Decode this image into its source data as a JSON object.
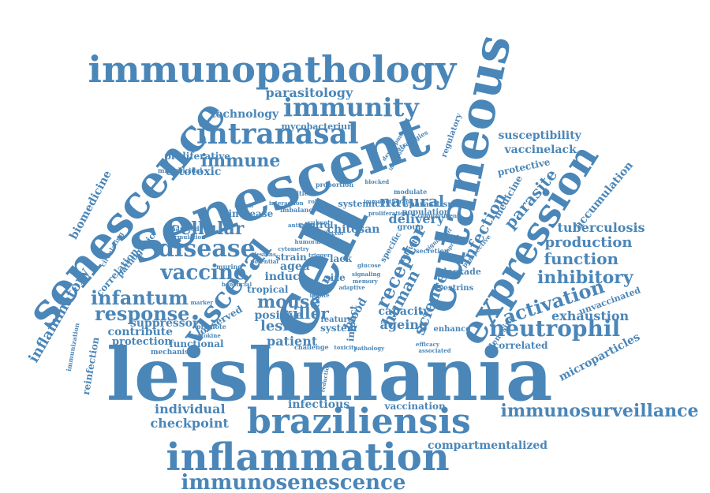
{
  "color": "#4a86b8",
  "words": [
    "leishmania",
    "cell",
    "senescent",
    "cutaneous",
    "expression",
    "senescence",
    "immunopathology",
    "inflammation",
    "braziliensis",
    "visceral",
    "intranasal",
    "immunity",
    "immunosenescence",
    "immunosurveillance",
    "neutrophil",
    "disease",
    "vaccine",
    "infantum",
    "response",
    "mouse",
    "cellular",
    "activation",
    "inhibitory",
    "function",
    "production",
    "tuberculosis",
    "parasite",
    "infection",
    "receptor",
    "human",
    "science",
    "inflammatory",
    "natural",
    "delivery",
    "killer",
    "lesion",
    "immune",
    "technology",
    "parasitology",
    "cytotoxic",
    "proliferative",
    "biomedicine",
    "mycobacterium",
    "chitosan",
    "infectious",
    "vaccination",
    "individual",
    "checkpoint",
    "compartmentalized",
    "microparticles",
    "exhaustion",
    "unvaccinated",
    "accumulation",
    "susceptibility",
    "vaccinelack",
    "protective",
    "medicine",
    "correlated",
    "adenosine",
    "patient",
    "ageing",
    "capacity",
    "positive",
    "aged",
    "induce",
    "tropical",
    "skin",
    "suppressor",
    "observed",
    "contribute",
    "protection",
    "mechanism",
    "functional",
    "reinfection",
    "immunization",
    "correlation",
    "pathogenic",
    "microbicidal",
    "systemic",
    "control",
    "increase",
    "exhausted",
    "circulating",
    "blockade",
    "sestrins",
    "enhance",
    "regulatory",
    "modulate",
    "parasitism",
    "population",
    "secretion",
    "group",
    "activity",
    "specific",
    "strain",
    "lack",
    "blood",
    "size",
    "impact",
    "system",
    "feature",
    "challenge",
    "promote",
    "murine",
    "kinase",
    "blocked",
    "proportion",
    "activities",
    "interaction",
    "imbalance",
    "improve",
    "cytokine",
    "formulation",
    "perspective",
    "significant",
    "interleukin",
    "immunotherapy",
    "efficacy",
    "associated",
    "pathology",
    "reduction",
    "strategies",
    "development",
    "compartment",
    "proliferation",
    "beneficial",
    "subset",
    "cytometry",
    "lymph",
    "lesions",
    "potential",
    "innate",
    "adaptive",
    "antigen",
    "signaling",
    "marker",
    "glucose",
    "role",
    "trigger",
    "effector",
    "memory",
    "humoral",
    "toxicity",
    "mucosal",
    "ligand",
    "therapy"
  ]
}
